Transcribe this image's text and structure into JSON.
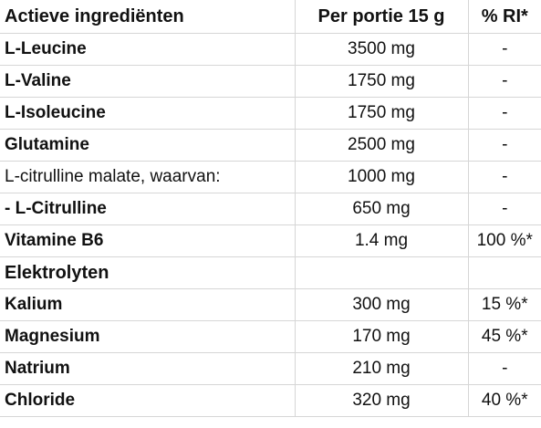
{
  "table": {
    "headers": {
      "name": "Actieve ingrediënten",
      "amount": "Per portie 15 g",
      "ri": "% RI*"
    },
    "rows": [
      {
        "name": "L-Leucine",
        "amount": "3500 mg",
        "ri": "-",
        "bold": true
      },
      {
        "name": "L-Valine",
        "amount": "1750 mg",
        "ri": "-",
        "bold": true
      },
      {
        "name": "L-Isoleucine",
        "amount": "1750 mg",
        "ri": "-",
        "bold": true
      },
      {
        "name": "Glutamine",
        "amount": "2500 mg",
        "ri": "-",
        "bold": true
      },
      {
        "name": "L-citrulline malate, waarvan:",
        "amount": "1000 mg",
        "ri": "-",
        "bold": false
      },
      {
        "name": "- L-Citrulline",
        "amount": "650 mg",
        "ri": "-",
        "bold": true
      },
      {
        "name": "Vitamine B6",
        "amount": "1.4 mg",
        "ri": "100 %*",
        "bold": true
      },
      {
        "name": "Elektrolyten",
        "amount": "",
        "ri": "",
        "bold": true,
        "section": true
      },
      {
        "name": "Kalium",
        "amount": "300 mg",
        "ri": "15 %*",
        "bold": true
      },
      {
        "name": "Magnesium",
        "amount": "170 mg",
        "ri": "45 %*",
        "bold": true
      },
      {
        "name": "Natrium",
        "amount": "210 mg",
        "ri": "-",
        "bold": true
      },
      {
        "name": "Chloride",
        "amount": "320 mg",
        "ri": "40 %*",
        "bold": true
      }
    ]
  }
}
